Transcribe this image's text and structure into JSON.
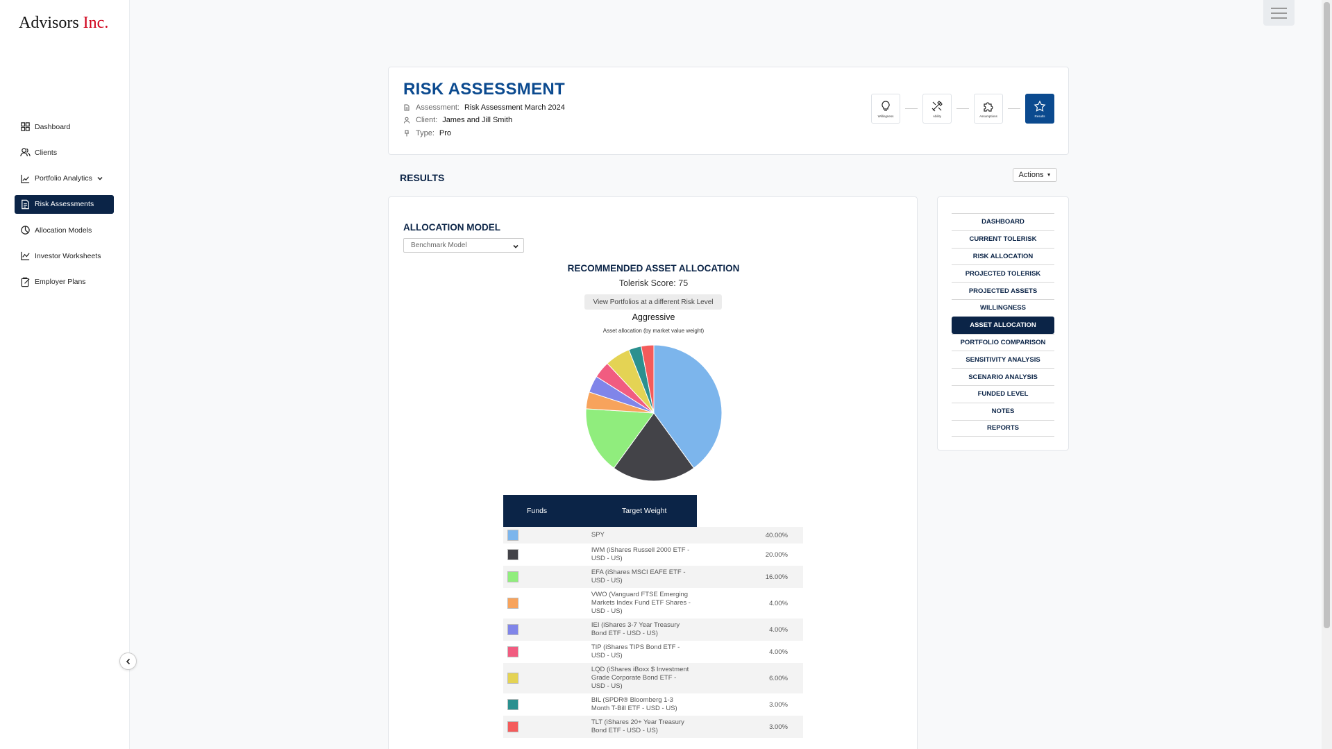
{
  "app": {
    "logo_main": "Advisors",
    "logo_accent": "Inc."
  },
  "sidebar": {
    "items": [
      {
        "label": "Dashboard",
        "icon": "dashboard-icon"
      },
      {
        "label": "Clients",
        "icon": "clients-icon"
      },
      {
        "label": "Portfolio Analytics",
        "icon": "analytics-icon"
      },
      {
        "label": "Risk Assessments",
        "icon": "document-icon",
        "active": true
      },
      {
        "label": "Allocation Models",
        "icon": "pie-icon"
      },
      {
        "label": "Investor Worksheets",
        "icon": "line-chart-icon"
      },
      {
        "label": "Employer Plans",
        "icon": "clipboard-icon"
      }
    ]
  },
  "header": {
    "title": "RISK ASSESSMENT",
    "assessment_label": "Assessment:",
    "assessment_value": "Risk Assessment March 2024",
    "client_label": "Client:",
    "client_value": "James and Jill Smith",
    "type_label": "Type:",
    "type_value": "Pro",
    "steps": [
      {
        "label": "Willingness",
        "icon": "lightbulb-icon"
      },
      {
        "label": "Ability",
        "icon": "tools-icon"
      },
      {
        "label": "Assumptions",
        "icon": "puzzle-icon"
      },
      {
        "label": "Results",
        "icon": "star-icon",
        "active": true
      }
    ]
  },
  "results": {
    "title": "RESULTS",
    "actions_label": "Actions"
  },
  "allocation": {
    "title": "ALLOCATION MODEL",
    "model_selected": "Benchmark Model",
    "recommended_title": "RECOMMENDED ASSET ALLOCATION",
    "tolerisk_score": "Tolerisk Score: 75",
    "view_button": "View Portfolios at a different Risk Level",
    "risk_level": "Aggressive",
    "pie_caption": "Asset allocation (by market value weight)",
    "table_header_funds": "Funds",
    "table_header_weight": "Target Weight"
  },
  "chart_data": {
    "type": "pie",
    "categories": [
      "SPY",
      "IWM (iShares Russell 2000 ETF - USD - US)",
      "EFA (iShares MSCI EAFE ETF - USD - US)",
      "VWO (Vanguard FTSE Emerging Markets Index Fund ETF Shares - USD - US)",
      "IEI (iShares 3-7 Year Treasury Bond ETF - USD - US)",
      "TIP (iShares TIPS Bond ETF - USD - US)",
      "LQD (iShares iBoxx $ Investment Grade Corporate Bond ETF - USD - US)",
      "BIL (SPDR® Bloomberg 1-3 Month T-Bill ETF - USD - US)",
      "TLT (iShares 20+ Year Treasury Bond ETF - USD - US)"
    ],
    "values": [
      40,
      20,
      16,
      4,
      4,
      4,
      6,
      3,
      3
    ],
    "labels": [
      "40.00%",
      "20.00%",
      "16.00%",
      "4.00%",
      "4.00%",
      "4.00%",
      "6.00%",
      "3.00%",
      "3.00%"
    ],
    "colors": [
      "#7cb5ec",
      "#434348",
      "#90ed7d",
      "#f7a35c",
      "#8085e9",
      "#f15c80",
      "#e4d354",
      "#2b908f",
      "#f45b5b"
    ]
  },
  "right_nav": {
    "items": [
      "DASHBOARD",
      "CURRENT TOLERISK",
      "RISK ALLOCATION",
      "PROJECTED TOLERISK",
      "PROJECTED ASSETS",
      "WILLINGNESS",
      "ASSET ALLOCATION",
      "PORTFOLIO COMPARISON",
      "SENSITIVITY ANALYSIS",
      "SCENARIO ANALYSIS",
      "FUNDED LEVEL",
      "NOTES",
      "REPORTS"
    ],
    "active_index": 6
  }
}
